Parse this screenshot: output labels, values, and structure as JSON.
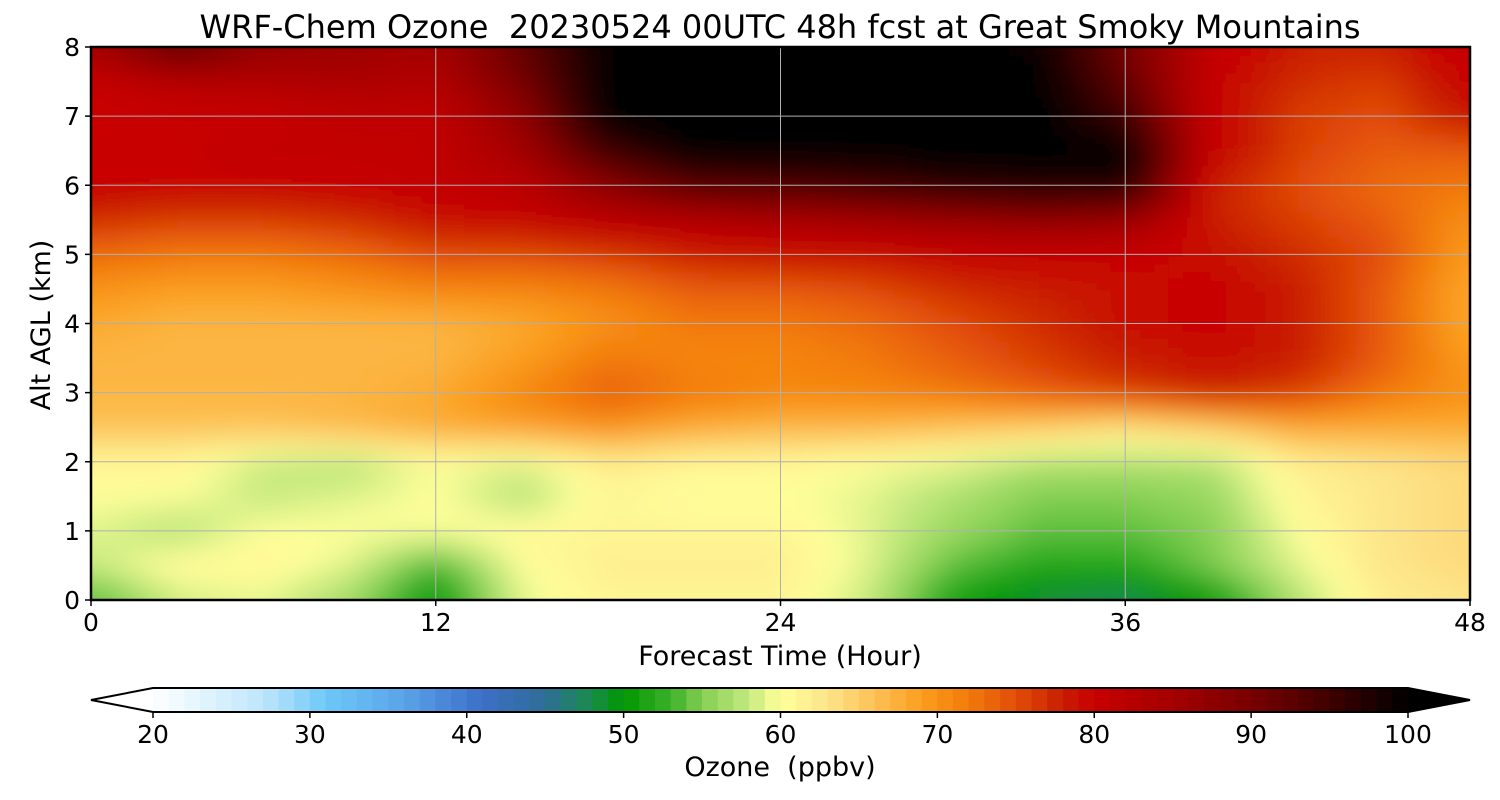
{
  "chart_data": {
    "type": "heatmap",
    "title": "WRF-Chem Ozone  20230524 00UTC 48h fcst at Great Smoky Mountains",
    "xlabel": "Forecast Time (Hour)",
    "ylabel": "Alt AGL (km)",
    "xlim": [
      0,
      48
    ],
    "ylim": [
      0,
      8
    ],
    "xticks": [
      0,
      12,
      24,
      36,
      48
    ],
    "yticks": [
      0,
      1,
      2,
      3,
      4,
      5,
      6,
      7,
      8
    ],
    "grid": true,
    "x_hours": [
      0,
      3,
      6,
      9,
      12,
      15,
      18,
      21,
      24,
      27,
      30,
      33,
      36,
      39,
      42,
      45,
      48
    ],
    "z_km": [
      0,
      0.5,
      1,
      1.5,
      2,
      2.5,
      3,
      3.5,
      4,
      4.5,
      5,
      5.5,
      6,
      6.5,
      7,
      7.5,
      8
    ],
    "ozone_ppbv": [
      [
        53,
        58,
        59,
        56,
        50,
        59,
        61,
        61,
        61,
        58,
        51,
        48,
        47,
        50,
        57,
        62,
        63
      ],
      [
        58,
        61,
        61,
        59,
        53,
        60,
        62,
        62,
        62,
        59,
        54,
        52,
        52,
        55,
        59,
        63,
        64
      ],
      [
        59,
        57,
        60,
        60,
        60,
        61,
        61,
        61,
        61,
        59,
        56,
        54,
        54,
        55,
        60,
        63,
        64
      ],
      [
        60,
        60,
        58,
        59,
        60,
        57,
        61,
        60,
        60,
        59,
        57,
        55,
        55,
        56,
        61,
        63,
        64
      ],
      [
        61,
        61,
        58,
        57,
        60,
        59,
        62,
        61,
        61,
        60,
        59,
        57,
        57,
        57,
        62,
        63,
        64
      ],
      [
        66,
        66,
        66,
        67,
        68,
        69,
        70,
        68,
        67,
        67,
        66,
        65,
        63,
        65,
        68,
        68,
        68
      ],
      [
        67,
        67,
        67,
        67,
        68,
        71,
        74,
        72,
        71,
        71,
        72,
        74,
        76,
        78,
        76,
        72,
        70
      ],
      [
        67,
        67,
        67,
        67,
        67,
        69,
        72,
        71,
        71,
        72,
        74,
        76,
        78,
        79,
        78,
        74,
        69
      ],
      [
        68,
        67,
        67,
        67,
        67,
        68,
        70,
        72,
        72,
        73,
        75,
        77,
        79,
        80,
        78,
        74,
        68
      ],
      [
        70,
        69,
        69,
        70,
        71,
        71,
        72,
        74,
        74,
        75,
        77,
        78,
        79,
        80,
        78,
        74,
        68
      ],
      [
        73,
        72,
        72,
        73,
        75,
        75,
        76,
        78,
        79,
        79,
        80,
        80,
        80,
        79,
        77,
        75,
        69
      ],
      [
        77,
        76,
        76,
        77,
        79,
        80,
        82,
        83,
        84,
        85,
        86,
        87,
        86,
        78,
        76,
        74,
        70
      ],
      [
        80,
        80,
        80,
        80,
        81,
        82,
        88,
        93,
        94,
        95,
        97,
        98,
        98,
        78,
        75,
        73,
        72
      ],
      [
        80,
        80,
        81,
        81,
        81,
        85,
        95,
        100,
        100,
        100,
        100,
        100,
        100,
        80,
        76,
        74,
        74
      ],
      [
        80,
        80,
        80,
        81,
        81,
        87,
        100,
        100,
        100,
        100,
        100,
        100,
        95,
        80,
        76,
        75,
        79
      ],
      [
        80,
        82,
        83,
        84,
        83,
        90,
        100,
        100,
        100,
        100,
        100,
        100,
        92,
        80,
        77,
        76,
        80
      ],
      [
        85,
        93,
        87,
        86,
        85,
        92,
        100,
        100,
        100,
        100,
        100,
        99,
        90,
        81,
        78,
        78,
        81
      ]
    ],
    "colorbar": {
      "label": "Ozone  (ppbv)",
      "min": 20,
      "max": 100,
      "ticks": [
        20,
        30,
        40,
        50,
        60,
        70,
        80,
        90,
        100
      ],
      "extend": "both",
      "stops": [
        {
          "v": 20,
          "c": "#ffffff"
        },
        {
          "v": 27,
          "c": "#bfe6fb"
        },
        {
          "v": 31,
          "c": "#6ec8f7"
        },
        {
          "v": 36,
          "c": "#5aa3e8"
        },
        {
          "v": 41,
          "c": "#3b6fc7"
        },
        {
          "v": 45,
          "c": "#2f6e98"
        },
        {
          "v": 48,
          "c": "#198c4a"
        },
        {
          "v": 50,
          "c": "#009700"
        },
        {
          "v": 53,
          "c": "#3bb02a"
        },
        {
          "v": 55,
          "c": "#84cf52"
        },
        {
          "v": 58,
          "c": "#c5e97f"
        },
        {
          "v": 60,
          "c": "#ffff9a"
        },
        {
          "v": 63,
          "c": "#fde58a"
        },
        {
          "v": 66,
          "c": "#fcc155"
        },
        {
          "v": 69,
          "c": "#fb9e1e"
        },
        {
          "v": 72,
          "c": "#f27a0b"
        },
        {
          "v": 75,
          "c": "#e24e08"
        },
        {
          "v": 78,
          "c": "#c81d00"
        },
        {
          "v": 80,
          "c": "#c80000"
        },
        {
          "v": 85,
          "c": "#a40000"
        },
        {
          "v": 90,
          "c": "#780000"
        },
        {
          "v": 95,
          "c": "#3f0000"
        },
        {
          "v": 100,
          "c": "#000000"
        }
      ]
    }
  }
}
